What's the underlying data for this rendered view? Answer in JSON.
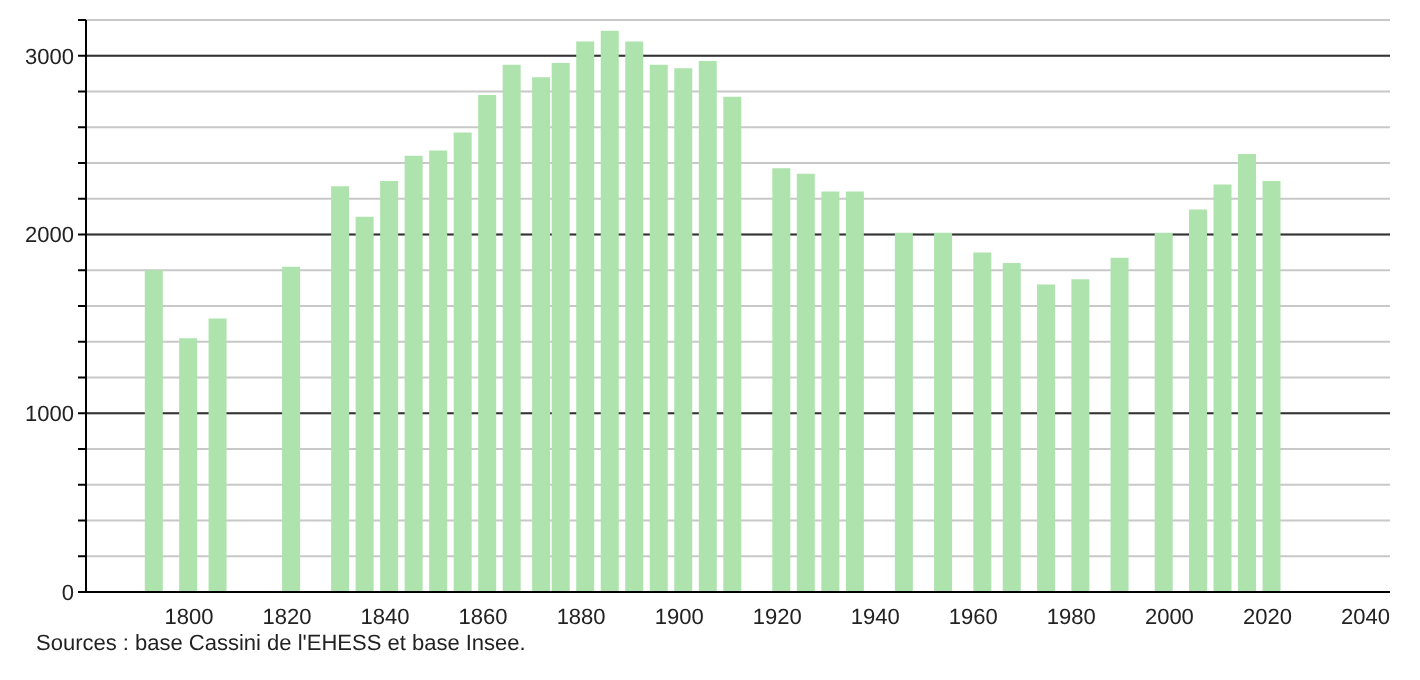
{
  "chart_data": {
    "type": "bar",
    "x": [
      1793,
      1800,
      1806,
      1821,
      1831,
      1836,
      1841,
      1846,
      1851,
      1856,
      1861,
      1866,
      1872,
      1876,
      1881,
      1886,
      1891,
      1896,
      1901,
      1906,
      1911,
      1921,
      1926,
      1931,
      1936,
      1946,
      1954,
      1962,
      1968,
      1975,
      1982,
      1990,
      1999,
      2006,
      2011,
      2016,
      2021
    ],
    "values": [
      1800,
      1420,
      1530,
      1820,
      2270,
      2100,
      2300,
      2440,
      2470,
      2570,
      2780,
      2950,
      2880,
      2960,
      3080,
      3140,
      3080,
      2950,
      2930,
      2970,
      2770,
      2370,
      2340,
      2240,
      2240,
      2010,
      2010,
      1900,
      1840,
      1720,
      1750,
      1870,
      2010,
      2140,
      2280,
      2450,
      2300
    ],
    "color": "#aee3ae",
    "xlim": [
      1779,
      2045
    ],
    "xticks": [
      1800,
      1820,
      1840,
      1860,
      1880,
      1900,
      1920,
      1940,
      1960,
      1980,
      2000,
      2020,
      2040
    ],
    "ylim": [
      0,
      3200
    ],
    "yticks": [
      0,
      {
        "value": 200,
        "label": null
      },
      {
        "value": 400,
        "label": null
      },
      {
        "value": 600,
        "label": null
      },
      {
        "value": 800,
        "label": null
      },
      1000,
      {
        "value": 1200,
        "label": null
      },
      {
        "value": 1400,
        "label": null
      },
      {
        "value": 1600,
        "label": null
      },
      {
        "value": 1800,
        "label": null
      },
      2000,
      {
        "value": 2200,
        "label": null
      },
      {
        "value": 2400,
        "label": null
      },
      {
        "value": 2600,
        "label": null
      },
      {
        "value": 2800,
        "label": null
      },
      3000,
      {
        "value": 3200,
        "label": null
      }
    ],
    "grid": "y",
    "annotations": [
      "Sources : base Cassini de l'EHESS et base Insee."
    ]
  }
}
